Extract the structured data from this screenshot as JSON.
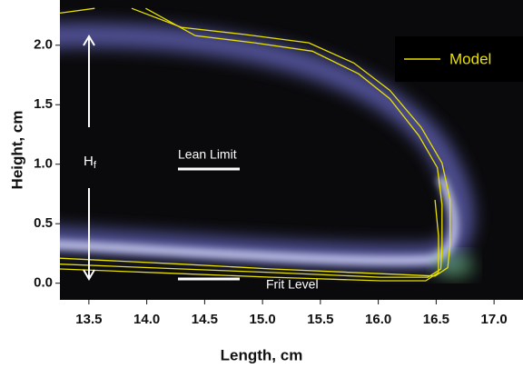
{
  "chart_data": {
    "type": "line",
    "xlabel": "Length, cm",
    "ylabel": "Height, cm",
    "annotations": {
      "lean": "Lean Limit",
      "frit": "Frit Level",
      "hf": "H",
      "hf_sub": "f"
    },
    "xlim": [
      13.25,
      17.25
    ],
    "ylim": [
      -0.14,
      2.38
    ],
    "xticks": [
      13.5,
      {
        "value": 14.0,
        "label": "14.0"
      },
      14.5,
      {
        "value": 15.0,
        "label": "15.0"
      },
      15.5,
      {
        "value": 16.0,
        "label": "16.0"
      },
      16.5,
      {
        "value": 17.0,
        "label": "17.0"
      }
    ],
    "yticks": [
      {
        "value": 0.0,
        "label": "0.0"
      },
      0.5,
      {
        "value": 1.0,
        "label": "1.0"
      },
      1.5,
      {
        "value": 2.0,
        "label": "2.0"
      }
    ],
    "series": [
      {
        "name": "Model",
        "color": "#e8e000",
        "x": [
          13.87,
          14.3,
          14.85,
          15.4,
          15.79,
          16.1,
          16.37,
          16.55,
          16.62,
          16.62,
          16.6,
          16.49,
          16.02,
          15.08,
          14.3,
          13.25
        ],
        "y": [
          2.31,
          2.15,
          2.09,
          2.02,
          1.85,
          1.62,
          1.31,
          1.01,
          0.7,
          0.32,
          0.13,
          0.06,
          0.08,
          0.12,
          0.16,
          0.21
        ]
      },
      {
        "color": "#e8e000",
        "x": [
          13.99,
          14.42,
          14.93,
          15.43,
          15.83,
          16.1,
          16.35,
          16.51,
          16.55,
          16.55,
          16.54,
          16.43,
          16.02,
          15.08,
          14.3,
          13.25
        ],
        "y": [
          2.31,
          2.08,
          2.02,
          1.95,
          1.76,
          1.55,
          1.24,
          0.97,
          0.66,
          0.32,
          0.12,
          0.05,
          0.05,
          0.09,
          0.12,
          0.16
        ]
      },
      {
        "color": "#e8e000",
        "x": [
          13.25,
          14.3,
          15.08,
          16.02,
          16.41,
          16.52,
          16.52,
          16.49
        ],
        "y": [
          0.12,
          0.08,
          0.05,
          0.02,
          0.02,
          0.09,
          0.4,
          0.7
        ]
      },
      {
        "color": "#e8e000",
        "x": [
          13.25,
          13.55
        ],
        "y": [
          2.27,
          2.31
        ]
      }
    ]
  }
}
